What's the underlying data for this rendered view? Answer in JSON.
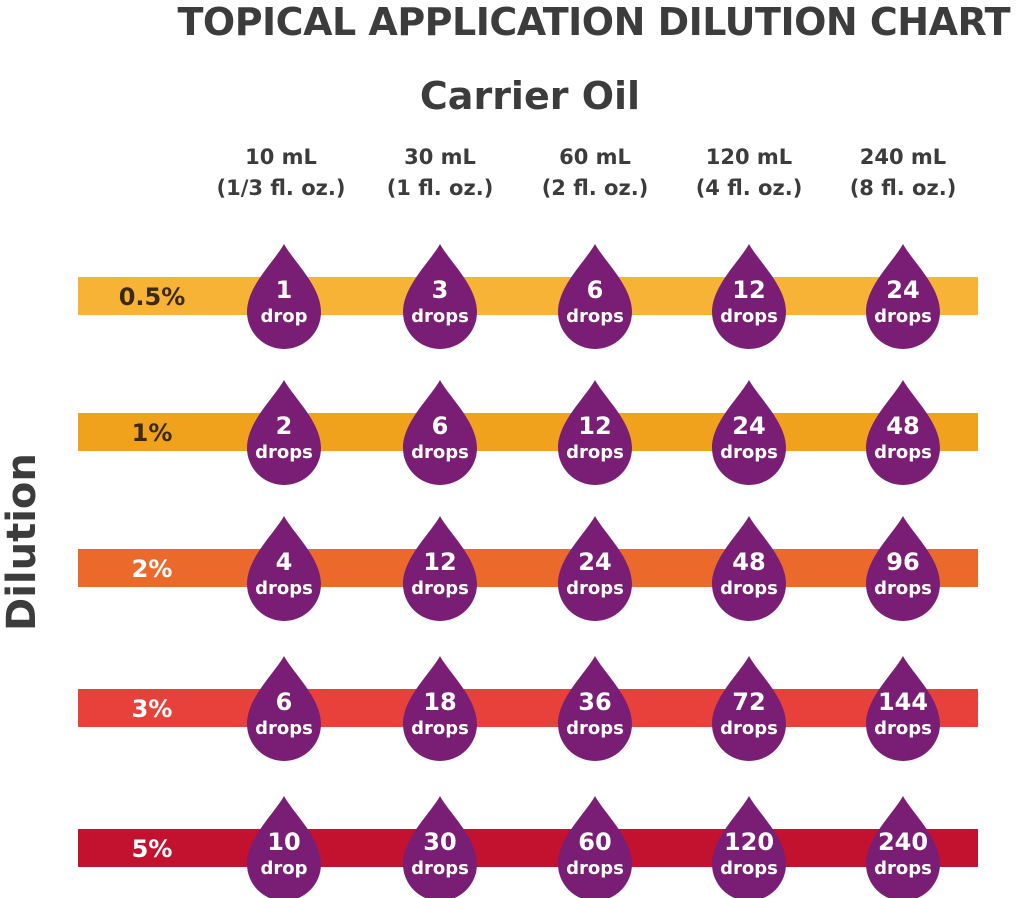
{
  "chart_data": {
    "type": "table",
    "title": "TOPICAL APPLICATION DILUTION CHART",
    "column_axis_label": "Carrier Oil",
    "row_axis_label": "Dilution",
    "columns": [
      {
        "line1": "10 mL",
        "line2": "(1/3 fl. oz.)"
      },
      {
        "line1": "30 mL",
        "line2": "(1 fl. oz.)"
      },
      {
        "line1": "60 mL",
        "line2": "(2 fl. oz.)"
      },
      {
        "line1": "120 mL",
        "line2": "(4 fl. oz.)"
      },
      {
        "line1": "240 mL",
        "line2": "(8 fl. oz.)"
      }
    ],
    "rows": [
      {
        "label": "0.5%",
        "color": "#f6b335",
        "text_color": "#3a2a14",
        "cells": [
          {
            "value": "1",
            "unit": "drop"
          },
          {
            "value": "3",
            "unit": "drops"
          },
          {
            "value": "6",
            "unit": "drops"
          },
          {
            "value": "12",
            "unit": "drops"
          },
          {
            "value": "24",
            "unit": "drops"
          }
        ]
      },
      {
        "label": "1%",
        "color": "#f0a21c",
        "text_color": "#3a2a14",
        "cells": [
          {
            "value": "2",
            "unit": "drops"
          },
          {
            "value": "6",
            "unit": "drops"
          },
          {
            "value": "12",
            "unit": "drops"
          },
          {
            "value": "24",
            "unit": "drops"
          },
          {
            "value": "48",
            "unit": "drops"
          }
        ]
      },
      {
        "label": "2%",
        "color": "#ec692c",
        "text_color": "#ffffff",
        "cells": [
          {
            "value": "4",
            "unit": "drops"
          },
          {
            "value": "12",
            "unit": "drops"
          },
          {
            "value": "24",
            "unit": "drops"
          },
          {
            "value": "48",
            "unit": "drops"
          },
          {
            "value": "96",
            "unit": "drops"
          }
        ]
      },
      {
        "label": "3%",
        "color": "#e8403a",
        "text_color": "#ffffff",
        "cells": [
          {
            "value": "6",
            "unit": "drops"
          },
          {
            "value": "18",
            "unit": "drops"
          },
          {
            "value": "36",
            "unit": "drops"
          },
          {
            "value": "72",
            "unit": "drops"
          },
          {
            "value": "144",
            "unit": "drops"
          }
        ]
      },
      {
        "label": "5%",
        "color": "#c3122f",
        "text_color": "#ffffff",
        "cells": [
          {
            "value": "10",
            "unit": "drop"
          },
          {
            "value": "30",
            "unit": "drops"
          },
          {
            "value": "60",
            "unit": "drops"
          },
          {
            "value": "120",
            "unit": "drops"
          },
          {
            "value": "240",
            "unit": "drops"
          }
        ]
      }
    ],
    "drop_color": "#7a1d74"
  }
}
